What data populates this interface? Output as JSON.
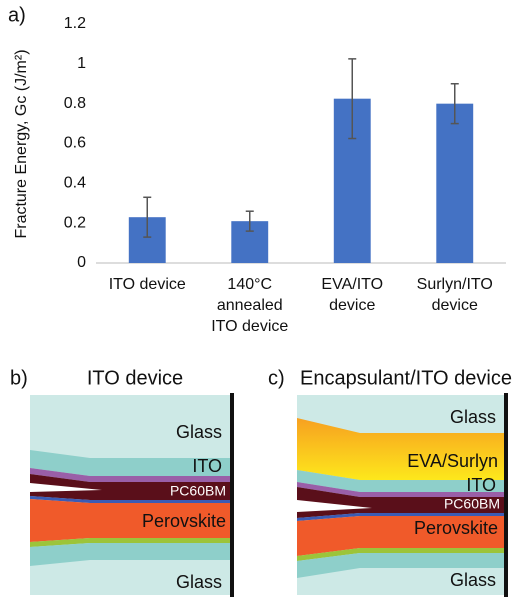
{
  "chart_data": {
    "type": "bar",
    "panel_label": "a)",
    "y_label": "Fracture Energy, Gc (J/m²)",
    "categories": [
      [
        "ITO device"
      ],
      [
        "140°C",
        "annealed",
        "ITO device"
      ],
      [
        "EVA/ITO",
        "device"
      ],
      [
        "Surlyn/ITO",
        "device"
      ]
    ],
    "values": [
      0.23,
      0.21,
      0.825,
      0.8
    ],
    "errors": [
      0.1,
      0.05,
      0.2,
      0.1
    ],
    "color": "#4472c4",
    "ylim": [
      0,
      1.2
    ],
    "yticks": [
      0,
      0.2,
      0.4,
      0.6,
      0.8,
      1,
      1.2
    ],
    "grid": false
  },
  "diagrams": [
    {
      "label": "b)",
      "title": "ITO device",
      "layers": [
        "Glass",
        "ITO",
        "PC60BM",
        "Perovskite",
        "Glass"
      ]
    },
    {
      "label": "c)",
      "title": "Encapsulant/ITO device",
      "layers": [
        "Glass",
        "EVA/Surlyn",
        "ITO",
        "PC60BM",
        "Perovskite",
        "Glass"
      ]
    }
  ]
}
